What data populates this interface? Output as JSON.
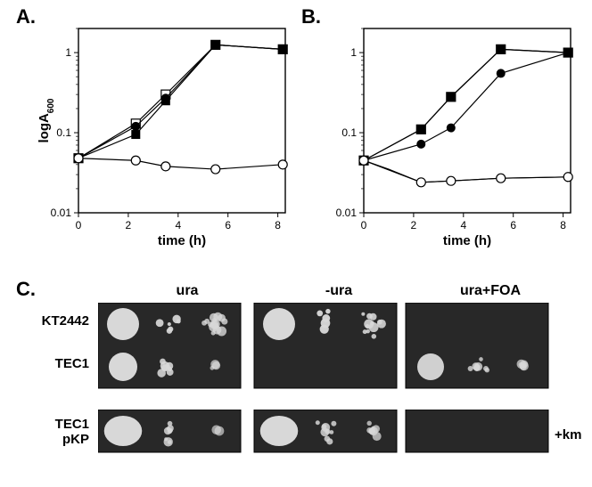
{
  "panelA": {
    "label": "A.",
    "type": "line",
    "xlabel": "time (h)",
    "ylabel": "logA",
    "ylabel_sub": "600",
    "xlim": [
      0,
      8.3
    ],
    "ylim": [
      0.01,
      2
    ],
    "xticks": [
      0,
      2,
      4,
      6,
      8
    ],
    "yticks": [
      0.01,
      0.1,
      1
    ],
    "ytick_labels": [
      "0.01",
      "0.1",
      "1"
    ],
    "yscale": "log",
    "background_color": "#ffffff",
    "axis_color": "#000000",
    "marker_size": 5,
    "line_width": 1.2,
    "series": [
      {
        "name": "open-square",
        "marker": "square-open",
        "color": "#000000",
        "x": [
          0,
          2.3,
          3.5,
          5.5,
          8.2
        ],
        "y": [
          0.048,
          0.13,
          0.3,
          1.25,
          1.1
        ]
      },
      {
        "name": "filled-square",
        "marker": "square-filled",
        "color": "#000000",
        "x": [
          0,
          2.3,
          3.5,
          5.5,
          8.2
        ],
        "y": [
          0.048,
          0.095,
          0.25,
          1.25,
          1.1
        ]
      },
      {
        "name": "filled-circle",
        "marker": "circle-filled",
        "color": "#000000",
        "x": [
          0,
          2.3,
          3.5,
          5.5,
          8.2
        ],
        "y": [
          0.048,
          0.12,
          0.27,
          1.25,
          1.1
        ]
      },
      {
        "name": "open-circle",
        "marker": "circle-open",
        "color": "#000000",
        "x": [
          0,
          2.3,
          3.5,
          5.5,
          8.2
        ],
        "y": [
          0.048,
          0.045,
          0.038,
          0.035,
          0.04
        ]
      }
    ]
  },
  "panelB": {
    "label": "B.",
    "type": "line",
    "xlabel": "time (h)",
    "xlim": [
      0,
      8.3
    ],
    "ylim": [
      0.01,
      2
    ],
    "xticks": [
      0,
      2,
      4,
      6,
      8
    ],
    "yticks": [
      0.01,
      0.1,
      1
    ],
    "ytick_labels": [
      "0.01",
      "0.1",
      "1"
    ],
    "yscale": "log",
    "background_color": "#ffffff",
    "axis_color": "#000000",
    "marker_size": 5,
    "line_width": 1.2,
    "series": [
      {
        "name": "open-square",
        "marker": "square-open",
        "color": "#000000",
        "x": [
          0,
          2.3,
          3.5,
          5.5,
          8.2
        ],
        "y": [
          0.045,
          0.11,
          0.28,
          1.1,
          1.0
        ]
      },
      {
        "name": "filled-square",
        "marker": "square-filled",
        "color": "#000000",
        "x": [
          0,
          2.3,
          3.5,
          5.5,
          8.2
        ],
        "y": [
          0.045,
          0.11,
          0.28,
          1.1,
          1.0
        ]
      },
      {
        "name": "filled-circle",
        "marker": "circle-filled",
        "color": "#000000",
        "x": [
          0,
          2.3,
          3.5,
          5.5,
          8.2
        ],
        "y": [
          0.045,
          0.072,
          0.115,
          0.55,
          1.0
        ]
      },
      {
        "name": "noline",
        "marker": "none",
        "color": "#000000",
        "x": [
          0,
          1.0,
          2.3,
          3.5,
          5.5,
          8.2
        ],
        "y": [
          0.045,
          0.035,
          0.024,
          0.025,
          0.027,
          0.028
        ]
      },
      {
        "name": "open-circle",
        "marker": "circle-open",
        "color": "#000000",
        "x": [
          0,
          2.3,
          3.5,
          5.5,
          8.2
        ],
        "y": [
          0.045,
          0.024,
          0.025,
          0.027,
          0.028
        ]
      }
    ]
  },
  "panelC": {
    "label": "C.",
    "col_headers": [
      "ura",
      "-ura",
      "ura+FOA"
    ],
    "row_labels": [
      "KT2442",
      "TEC1",
      "TEC1\npKP"
    ],
    "km_label": "+km",
    "panel_bg": "#282828",
    "colony_color": "#d8d8d8",
    "box_border": "#000000",
    "rows": [
      {
        "id": "KT2442",
        "cells": [
          {
            "col": "ura",
            "spots": [
              {
                "r": 18,
                "fill": 1.0
              },
              {
                "r": 14,
                "fill": 0.8,
                "scatter": 6
              },
              {
                "r": 13,
                "fill": 0.5,
                "scatter": 14
              }
            ]
          },
          {
            "col": "-ura",
            "spots": [
              {
                "r": 18,
                "fill": 1.0
              },
              {
                "r": 16,
                "fill": 0.9,
                "scatter": 5
              },
              {
                "r": 15,
                "fill": 0.7,
                "scatter": 12
              }
            ]
          },
          {
            "col": "ura+FOA",
            "spots": []
          }
        ]
      },
      {
        "id": "TEC1",
        "cells": [
          {
            "col": "ura",
            "spots": [
              {
                "r": 16,
                "fill": 1.0
              },
              {
                "r": 13,
                "fill": 0.7,
                "scatter": 8
              },
              {
                "r": 6,
                "fill": 0.3,
                "scatter": 3
              }
            ]
          },
          {
            "col": "-ura",
            "spots": []
          },
          {
            "col": "ura+FOA",
            "spots": [
              {
                "r": 15,
                "fill": 0.9
              },
              {
                "r": 12,
                "fill": 0.5,
                "scatter": 10
              },
              {
                "r": 8,
                "fill": 0.3,
                "scatter": 6
              }
            ]
          }
        ]
      },
      {
        "id": "TEC1pKP",
        "cells": [
          {
            "col": "ura",
            "spots": [
              {
                "r": 17,
                "fill": 1.0,
                "oval": 1
              },
              {
                "r": 13,
                "fill": 0.6,
                "scatter": 10
              },
              {
                "r": 5,
                "fill": 0.2,
                "scatter": 2
              }
            ]
          },
          {
            "col": "-ura",
            "spots": [
              {
                "r": 17,
                "fill": 1.0,
                "oval": 1
              },
              {
                "r": 13,
                "fill": 0.6,
                "scatter": 9
              },
              {
                "r": 10,
                "fill": 0.4,
                "scatter": 8
              }
            ]
          },
          {
            "col": "ura+FOA",
            "spots": []
          }
        ]
      }
    ]
  }
}
